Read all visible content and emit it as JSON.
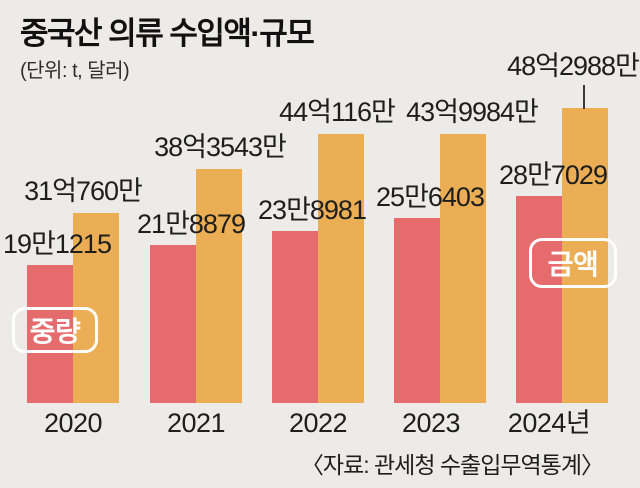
{
  "title": "중국산 의류 수입액·규모",
  "subtitle": "(단위: t, 달러)",
  "source": "〈자료: 관세청 수출입무역통계〉",
  "legend": {
    "weight_label": "중량",
    "amount_label": "금액"
  },
  "colors": {
    "background": "#ECEBE7",
    "weight_bar": "#E66B6D",
    "amount_bar": "#EBAE54",
    "weight_badge": "#E7686B",
    "amount_badge": "#EFAD4B",
    "text": "#1E1E1E"
  },
  "chart_data": {
    "type": "bar",
    "categories": [
      "2020",
      "2021",
      "2022",
      "2023",
      "2024년"
    ],
    "series": [
      {
        "name": "중량",
        "unit": "t",
        "values": [
          191215,
          218879,
          238981,
          256403,
          287029
        ],
        "display": [
          "19만1215",
          "21만8879",
          "23만8981",
          "25만6403",
          "28만7029"
        ],
        "color": "#E66B6D"
      },
      {
        "name": "금액",
        "unit": "만 달러",
        "values": [
          310760,
          383543,
          440116,
          439984,
          482988
        ],
        "display": [
          "31억760만",
          "38억3543만",
          "44억116만",
          "43억9984만",
          "48억2988만"
        ],
        "color": "#EBAE54"
      }
    ],
    "grid": false,
    "legend_position": "on-bars",
    "callout": {
      "series": "금액",
      "category": "2024년"
    }
  }
}
